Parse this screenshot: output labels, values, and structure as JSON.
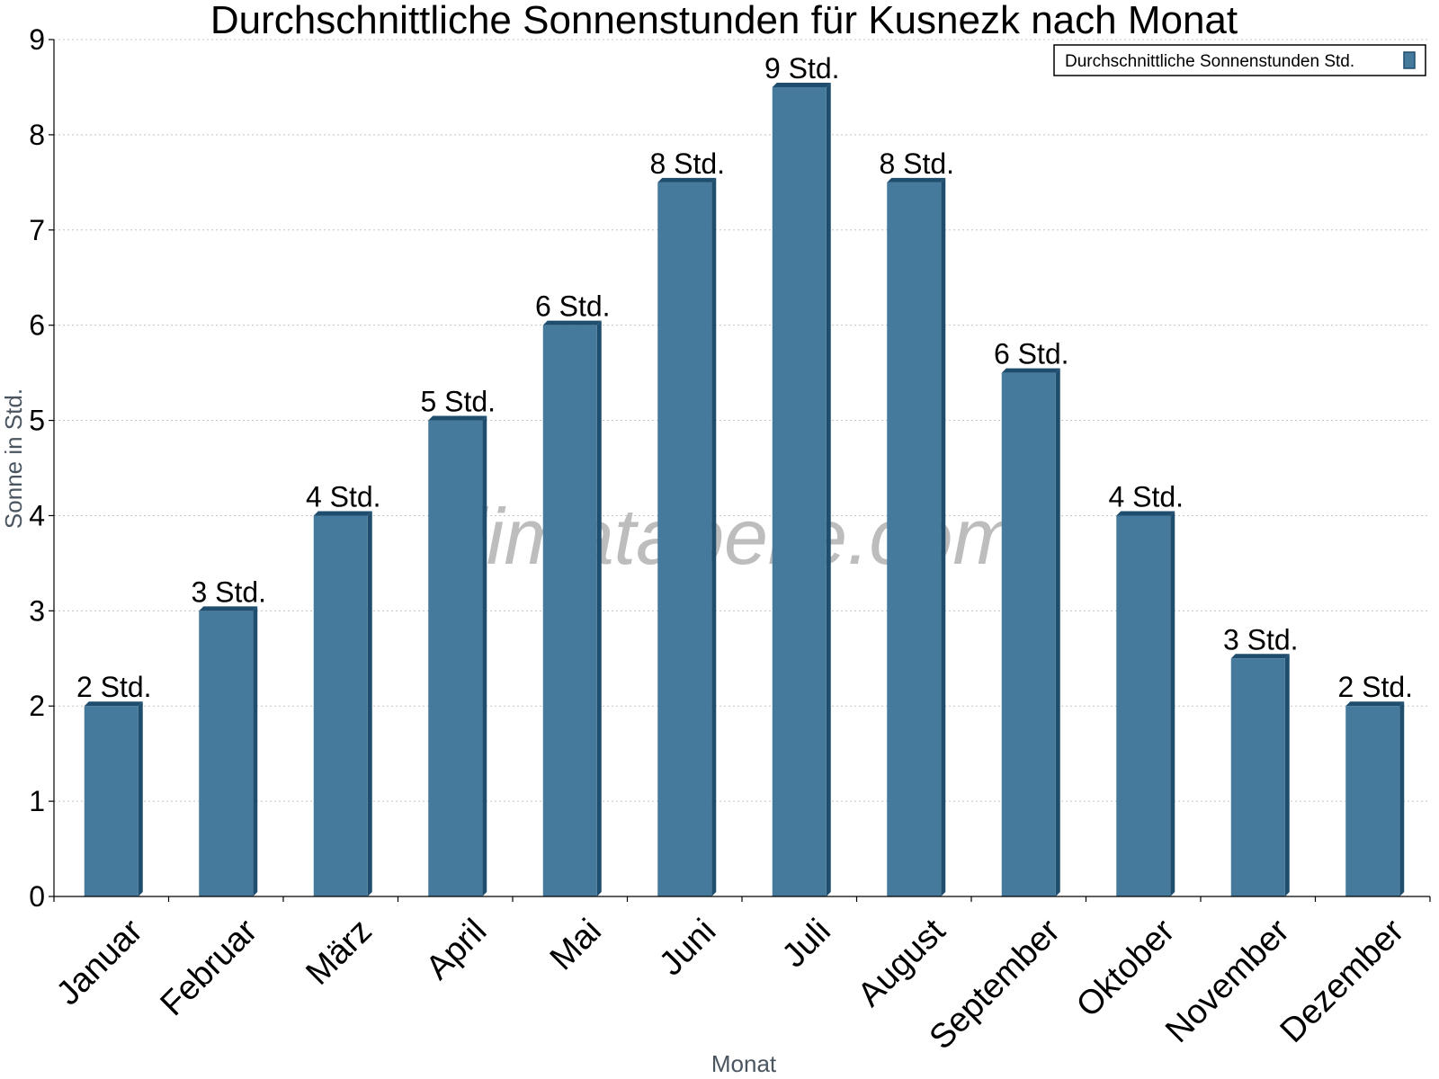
{
  "chart_data": {
    "type": "bar",
    "title": "Durchschnittliche Sonnenstunden für Kusnezk nach Monat",
    "xlabel": "Monat",
    "ylabel": "Sonne in Std.",
    "ylim": [
      0,
      9
    ],
    "yticks": [
      "0",
      "1",
      "2",
      "3",
      "4",
      "5",
      "6",
      "7",
      "8",
      "9"
    ],
    "grid": true,
    "legend_position": "top-right",
    "categories": [
      "Januar",
      "Februar",
      "März",
      "April",
      "Mai",
      "Juni",
      "Juli",
      "August",
      "September",
      "Oktober",
      "November",
      "Dezember"
    ],
    "series": [
      {
        "name": "Durchschnittliche Sonnenstunden Std.",
        "color": "#467a9c",
        "values": [
          2,
          3,
          4,
          5,
          6,
          7.5,
          8.5,
          7.5,
          5.5,
          4,
          2.5,
          2
        ],
        "data_labels": [
          "2 Std.",
          "3 Std.",
          "4 Std.",
          "5 Std.",
          "6 Std.",
          "8 Std.",
          "9 Std.",
          "8 Std.",
          "6 Std.",
          "4 Std.",
          "3 Std.",
          "2 Std."
        ]
      }
    ]
  },
  "watermark": "klimatabelle.com"
}
